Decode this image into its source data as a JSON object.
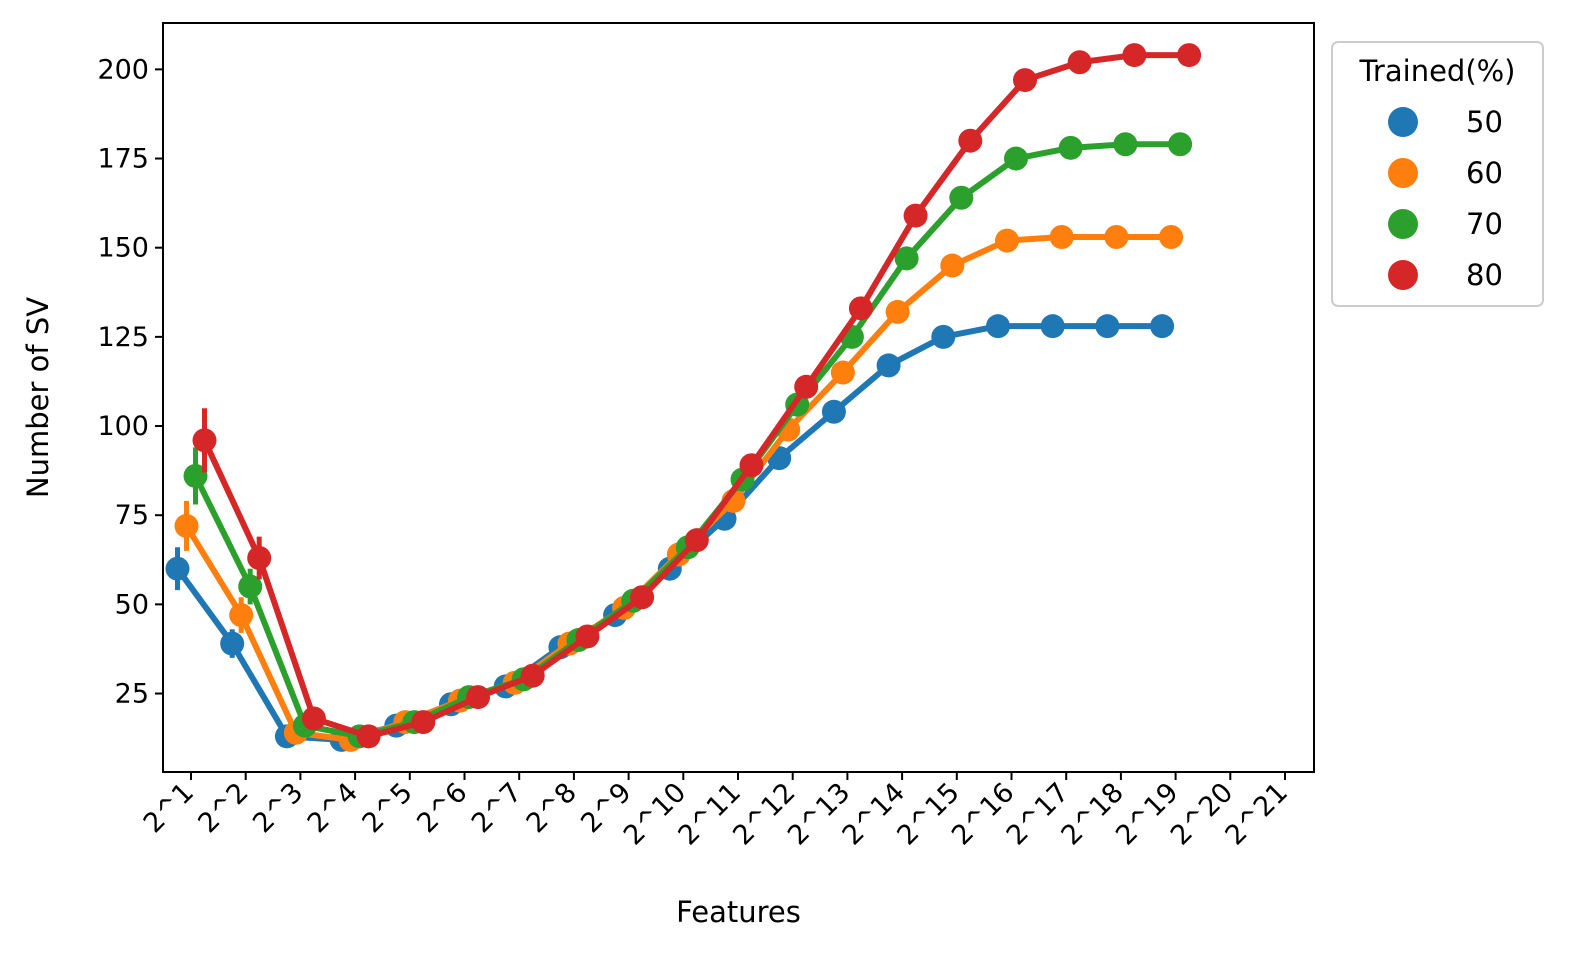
{
  "chart_data": {
    "type": "line",
    "xlabel": "Features",
    "ylabel": "Number of SV",
    "categories": [
      "2^1",
      "2^2",
      "2^3",
      "2^4",
      "2^5",
      "2^6",
      "2^7",
      "2^8",
      "2^9",
      "2^10",
      "2^11",
      "2^12",
      "2^13",
      "2^14",
      "2^15",
      "2^16",
      "2^17",
      "2^18",
      "2^19",
      "2^20",
      "2^21"
    ],
    "yticks": [
      25,
      50,
      75,
      100,
      125,
      150,
      175,
      200
    ],
    "ylim": [
      3,
      213
    ],
    "grid": false,
    "legend": {
      "title": "Trained(%)",
      "placement": "outside-top-right"
    },
    "series": [
      {
        "name": "50",
        "color": "#1f77b4",
        "x": [
          "2^1",
          "2^2",
          "2^3",
          "2^4",
          "2^5",
          "2^6",
          "2^7",
          "2^8",
          "2^9",
          "2^10",
          "2^11",
          "2^12",
          "2^13",
          "2^14",
          "2^15",
          "2^16",
          "2^17",
          "2^18",
          "2^19"
        ],
        "values": [
          60,
          39,
          13,
          12,
          16,
          22,
          27,
          38,
          47,
          60,
          74,
          91,
          104,
          117,
          125,
          128,
          128,
          128,
          128
        ],
        "error": [
          6,
          4,
          1,
          1,
          1,
          1,
          1,
          1,
          1,
          1,
          1,
          1,
          1,
          1,
          1,
          1,
          1,
          1,
          1
        ]
      },
      {
        "name": "60",
        "color": "#ff7f0e",
        "x": [
          "2^1",
          "2^2",
          "2^3",
          "2^4",
          "2^5",
          "2^6",
          "2^7",
          "2^8",
          "2^9",
          "2^10",
          "2^11",
          "2^12",
          "2^13",
          "2^14",
          "2^15",
          "2^16",
          "2^17",
          "2^18",
          "2^19"
        ],
        "values": [
          72,
          47,
          14,
          12,
          17,
          23,
          28,
          39,
          49,
          64,
          79,
          99,
          115,
          132,
          145,
          152,
          153,
          153,
          153
        ],
        "error": [
          7,
          5,
          1,
          1,
          1,
          1,
          1,
          1,
          1,
          1,
          1,
          1,
          1,
          1,
          1,
          1,
          1,
          1,
          1
        ]
      },
      {
        "name": "70",
        "color": "#2ca02c",
        "x": [
          "2^1",
          "2^2",
          "2^3",
          "2^4",
          "2^5",
          "2^6",
          "2^7",
          "2^8",
          "2^9",
          "2^10",
          "2^11",
          "2^12",
          "2^13",
          "2^14",
          "2^15",
          "2^16",
          "2^17",
          "2^18",
          "2^19"
        ],
        "values": [
          86,
          55,
          16,
          13,
          17,
          24,
          29,
          40,
          51,
          66,
          85,
          106,
          125,
          147,
          164,
          175,
          178,
          179,
          179
        ],
        "error": [
          8,
          5,
          2,
          1,
          1,
          1,
          1,
          1,
          1,
          1,
          1,
          1,
          1,
          1,
          1,
          1,
          1,
          1,
          1
        ]
      },
      {
        "name": "80",
        "color": "#d62728",
        "x": [
          "2^1",
          "2^2",
          "2^3",
          "2^4",
          "2^5",
          "2^6",
          "2^7",
          "2^8",
          "2^9",
          "2^10",
          "2^11",
          "2^12",
          "2^13",
          "2^14",
          "2^15",
          "2^16",
          "2^17",
          "2^18",
          "2^19"
        ],
        "values": [
          96,
          63,
          18,
          13,
          17,
          24,
          30,
          41,
          52,
          68,
          89,
          111,
          133,
          159,
          180,
          197,
          202,
          204,
          204
        ],
        "error": [
          9,
          6,
          2,
          1,
          1,
          1,
          1,
          1,
          1,
          1,
          1,
          1,
          1,
          1,
          1,
          1,
          1,
          1,
          1
        ]
      }
    ]
  }
}
